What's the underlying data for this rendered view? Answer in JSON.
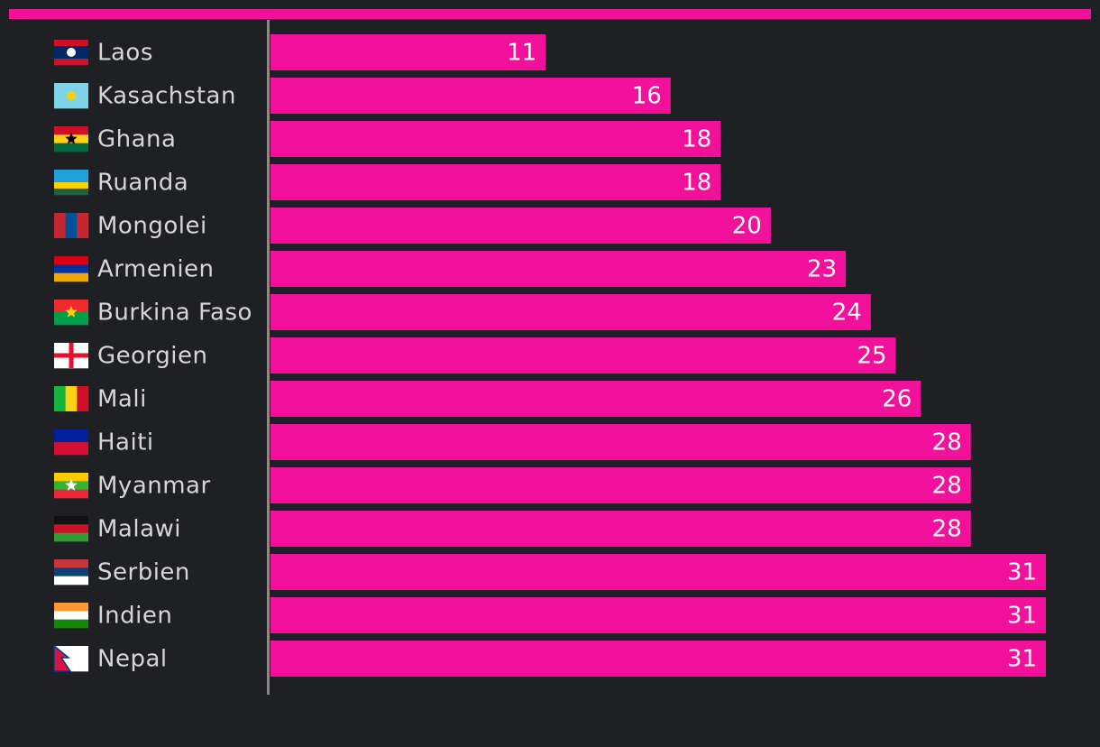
{
  "chart_data": {
    "type": "bar",
    "orientation": "horizontal",
    "categories": [
      "Laos",
      "Kasachstan",
      "Ghana",
      "Ruanda",
      "Mongolei",
      "Armenien",
      "Burkina Faso",
      "Georgien",
      "Mali",
      "Haiti",
      "Myanmar",
      "Malawi",
      "Serbien",
      "Indien",
      "Nepal"
    ],
    "values": [
      11,
      16,
      18,
      18,
      20,
      23,
      24,
      25,
      26,
      28,
      28,
      28,
      31,
      31,
      31
    ],
    "color": "#f2119a"
  }
}
